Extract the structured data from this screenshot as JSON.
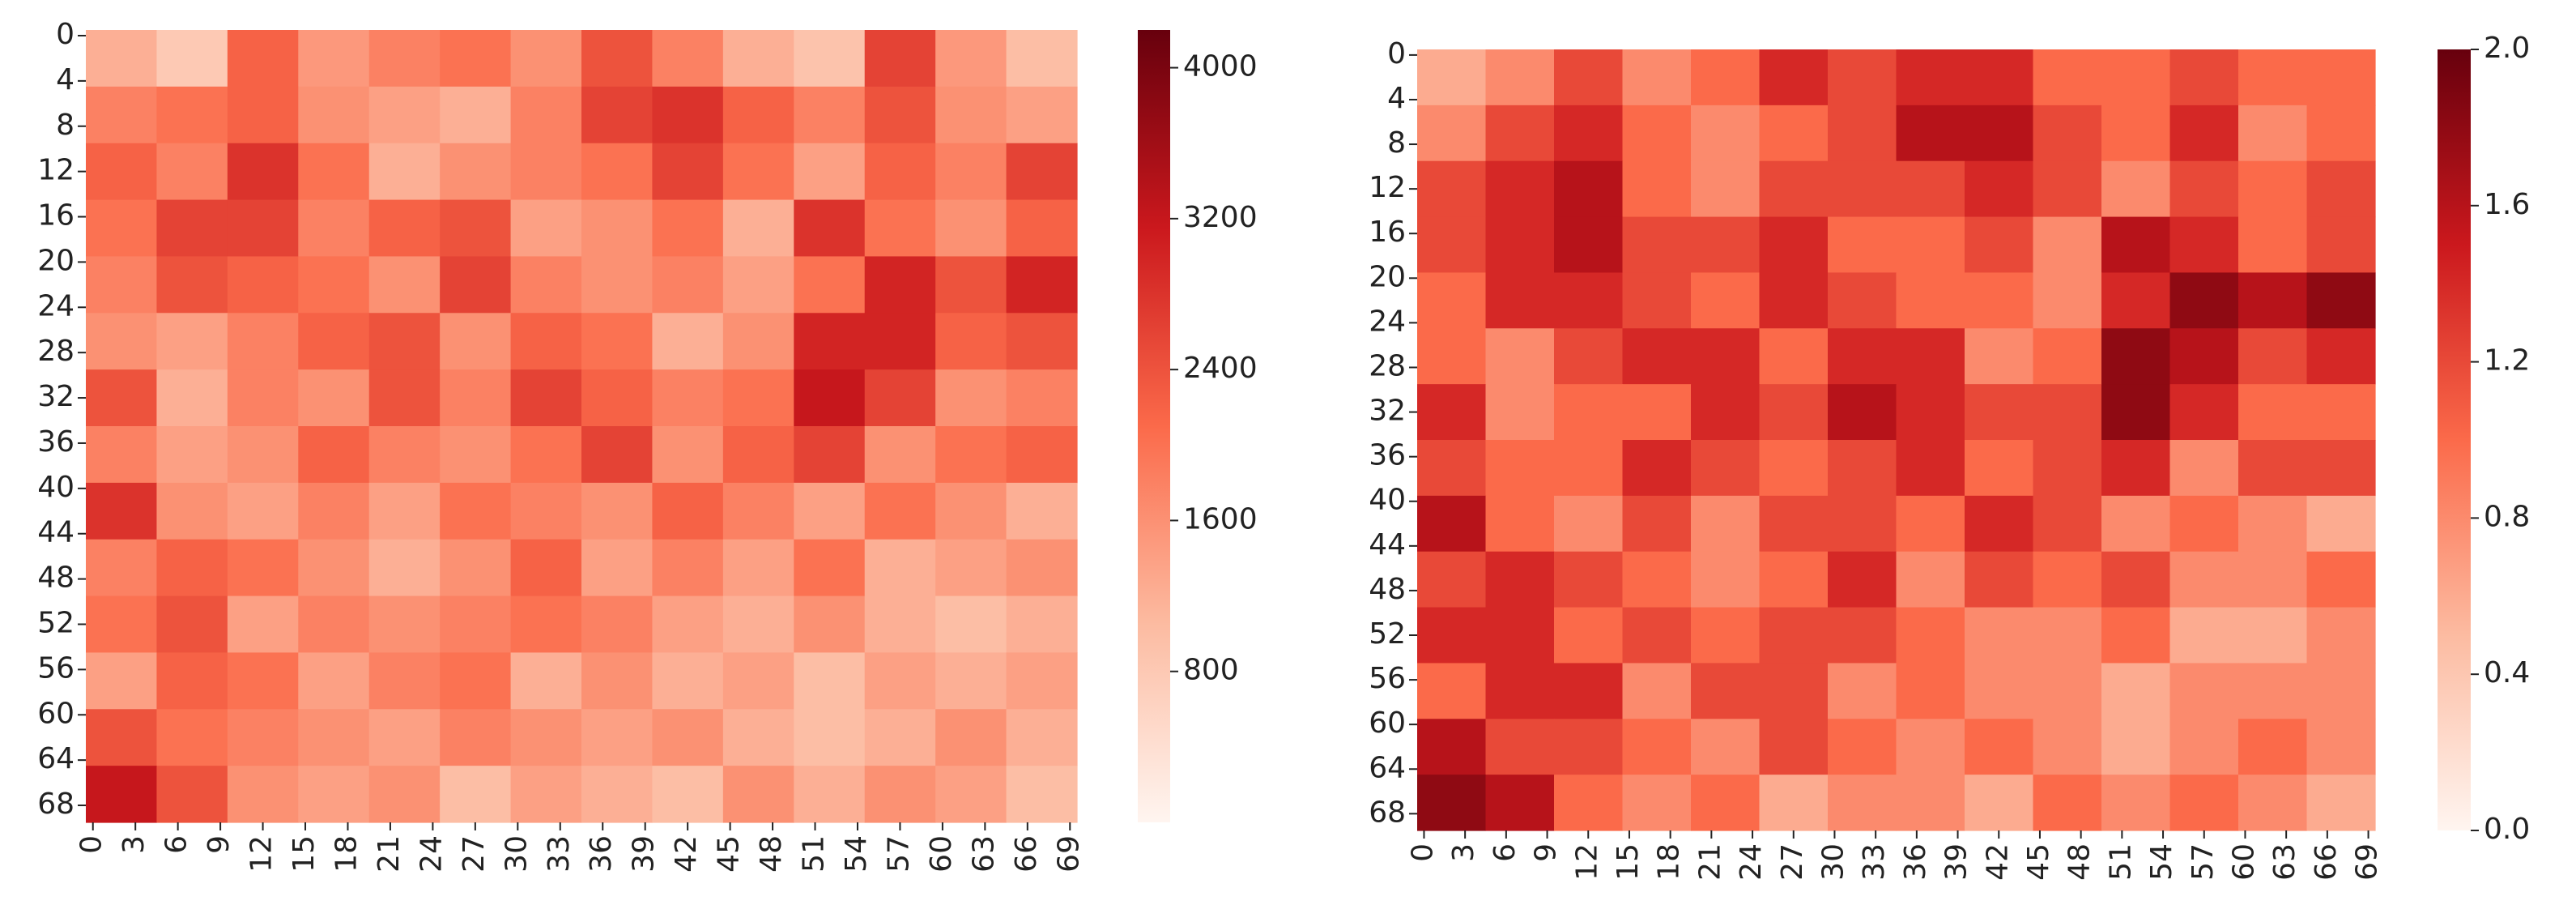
{
  "chart_data": [
    {
      "type": "heatmap",
      "colormap": [
        "#fff5f0",
        "#fcbba1",
        "#fb6a4a",
        "#cb181d",
        "#67000d"
      ],
      "xlim": [
        0,
        70
      ],
      "ylim": [
        0,
        70
      ],
      "xticks": [
        0,
        3,
        6,
        9,
        12,
        15,
        18,
        21,
        24,
        27,
        30,
        33,
        36,
        39,
        42,
        45,
        48,
        51,
        54,
        57,
        60,
        63,
        66,
        69
      ],
      "yticks": [
        0,
        4,
        8,
        12,
        16,
        20,
        24,
        28,
        32,
        36,
        40,
        44,
        48,
        52,
        56,
        60,
        64,
        68
      ],
      "clim": [
        0,
        4200
      ],
      "cticks": [
        800,
        1600,
        2400,
        3200,
        4000
      ],
      "z": [
        [
          1200,
          800,
          2200,
          1500,
          1800,
          2000,
          1600,
          2400,
          1800,
          1200,
          900,
          2600,
          1500,
          1000
        ],
        [
          1800,
          2000,
          2200,
          1600,
          1400,
          1200,
          1800,
          2600,
          2800,
          2200,
          1800,
          2400,
          1600,
          1400
        ],
        [
          2200,
          1800,
          2800,
          2000,
          1200,
          1600,
          1800,
          2000,
          2600,
          2000,
          1400,
          2200,
          1800,
          2600
        ],
        [
          2000,
          2600,
          2600,
          1800,
          2200,
          2400,
          1400,
          1600,
          2000,
          1200,
          2800,
          2000,
          1600,
          2200
        ],
        [
          1800,
          2400,
          2200,
          2000,
          1600,
          2600,
          1800,
          1600,
          1800,
          1400,
          2000,
          3000,
          2400,
          3000
        ],
        [
          1600,
          1400,
          1800,
          2200,
          2400,
          1600,
          2200,
          2000,
          1200,
          1600,
          3000,
          3000,
          2200,
          2400
        ],
        [
          2400,
          1200,
          1800,
          1600,
          2400,
          1800,
          2600,
          2200,
          1800,
          2000,
          3200,
          2600,
          1600,
          1800
        ],
        [
          1800,
          1400,
          1600,
          2200,
          1800,
          1600,
          2000,
          2600,
          1600,
          2200,
          2600,
          1600,
          2000,
          2200
        ],
        [
          2800,
          1600,
          1400,
          1800,
          1400,
          2000,
          1800,
          1600,
          2200,
          1800,
          1400,
          2000,
          1600,
          1200
        ],
        [
          1800,
          2200,
          2000,
          1600,
          1200,
          1600,
          2200,
          1400,
          1800,
          1400,
          2000,
          1200,
          1400,
          1600
        ],
        [
          2000,
          2400,
          1400,
          1800,
          1600,
          1800,
          2000,
          1800,
          1400,
          1200,
          1600,
          1200,
          1000,
          1200
        ],
        [
          1400,
          2200,
          2000,
          1400,
          1800,
          2000,
          1200,
          1600,
          1200,
          1400,
          1000,
          1400,
          1200,
          1400
        ],
        [
          2400,
          2000,
          1800,
          1600,
          1400,
          1800,
          1600,
          1400,
          1600,
          1200,
          1000,
          1200,
          1600,
          1200
        ],
        [
          3200,
          2400,
          1600,
          1400,
          1600,
          1000,
          1400,
          1200,
          1000,
          1600,
          1200,
          1600,
          1400,
          1000
        ]
      ]
    },
    {
      "type": "heatmap",
      "colormap": [
        "#fff5f0",
        "#fcbba1",
        "#fb6a4a",
        "#cb181d",
        "#67000d"
      ],
      "xlim": [
        0,
        70
      ],
      "ylim": [
        0,
        70
      ],
      "xticks": [
        0,
        3,
        6,
        9,
        12,
        15,
        18,
        21,
        24,
        27,
        30,
        33,
        36,
        39,
        42,
        45,
        48,
        51,
        54,
        57,
        60,
        63,
        66,
        69
      ],
      "yticks": [
        0,
        4,
        8,
        12,
        16,
        20,
        24,
        28,
        32,
        36,
        40,
        44,
        48,
        52,
        56,
        60,
        64,
        68
      ],
      "clim": [
        0,
        2
      ],
      "cticks": [
        {
          "value": 0,
          "label": "0.0"
        },
        0.4,
        0.8,
        1.2,
        1.6,
        {
          "value": 2,
          "label": "2.0"
        }
      ],
      "z": [
        [
          0.6,
          0.8,
          1.2,
          0.8,
          1.0,
          1.4,
          1.2,
          1.4,
          1.4,
          1.0,
          1.0,
          1.2,
          1.0,
          1.0
        ],
        [
          0.8,
          1.2,
          1.4,
          1.0,
          0.8,
          1.0,
          1.2,
          1.6,
          1.6,
          1.2,
          1.0,
          1.4,
          0.8,
          1.0
        ],
        [
          1.2,
          1.4,
          1.6,
          1.0,
          0.8,
          1.2,
          1.2,
          1.2,
          1.4,
          1.2,
          0.8,
          1.2,
          1.0,
          1.2
        ],
        [
          1.2,
          1.4,
          1.6,
          1.2,
          1.2,
          1.4,
          1.0,
          1.0,
          1.2,
          0.8,
          1.6,
          1.4,
          1.0,
          1.2
        ],
        [
          1.0,
          1.4,
          1.4,
          1.2,
          1.0,
          1.4,
          1.2,
          1.0,
          1.0,
          0.8,
          1.4,
          1.8,
          1.6,
          1.8
        ],
        [
          1.0,
          0.8,
          1.2,
          1.4,
          1.4,
          1.0,
          1.4,
          1.4,
          0.8,
          1.0,
          1.8,
          1.6,
          1.2,
          1.4
        ],
        [
          1.4,
          0.8,
          1.0,
          1.0,
          1.4,
          1.2,
          1.6,
          1.4,
          1.2,
          1.2,
          1.8,
          1.4,
          1.0,
          1.0
        ],
        [
          1.2,
          1.0,
          1.0,
          1.4,
          1.2,
          1.0,
          1.2,
          1.4,
          1.0,
          1.2,
          1.4,
          0.8,
          1.2,
          1.2
        ],
        [
          1.6,
          1.0,
          0.8,
          1.2,
          0.8,
          1.2,
          1.2,
          1.0,
          1.4,
          1.2,
          0.8,
          1.0,
          0.8,
          0.6
        ],
        [
          1.2,
          1.4,
          1.2,
          1.0,
          0.8,
          1.0,
          1.4,
          0.8,
          1.2,
          1.0,
          1.2,
          0.8,
          0.8,
          1.0
        ],
        [
          1.4,
          1.4,
          1.0,
          1.2,
          1.0,
          1.2,
          1.2,
          1.0,
          0.8,
          0.8,
          1.0,
          0.6,
          0.6,
          0.8
        ],
        [
          1.0,
          1.4,
          1.4,
          0.8,
          1.2,
          1.2,
          0.8,
          1.0,
          0.8,
          0.8,
          0.6,
          0.8,
          0.8,
          0.8
        ],
        [
          1.6,
          1.2,
          1.2,
          1.0,
          0.8,
          1.2,
          1.0,
          0.8,
          1.0,
          0.8,
          0.6,
          0.8,
          1.0,
          0.8
        ],
        [
          1.8,
          1.6,
          1.0,
          0.8,
          1.0,
          0.6,
          0.8,
          0.8,
          0.6,
          1.0,
          0.8,
          1.0,
          0.8,
          0.6
        ]
      ]
    }
  ]
}
